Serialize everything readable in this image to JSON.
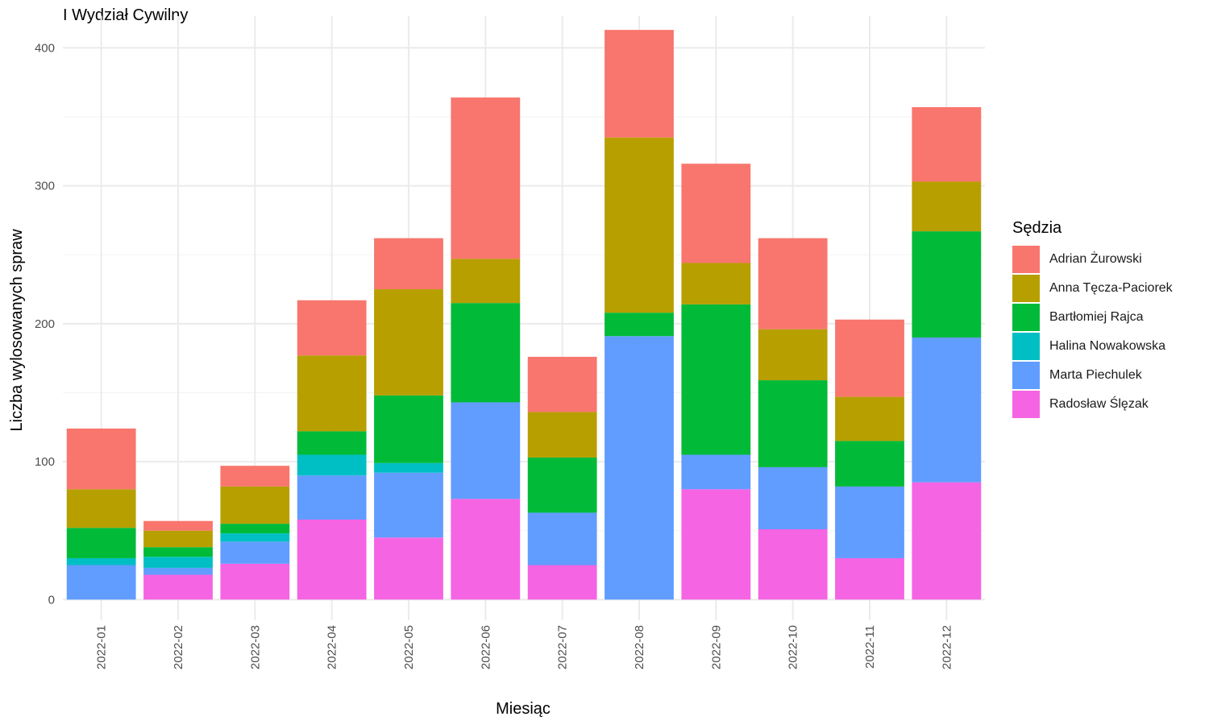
{
  "chart_data": {
    "type": "bar",
    "stacked": true,
    "title": "I Wydział Cywilny",
    "xlabel": "Miesiąc",
    "ylabel": "Liczba wylosowanych spraw",
    "ylim": [
      -15,
      423
    ],
    "yticks": [
      0,
      100,
      200,
      300,
      400
    ],
    "grid": true,
    "legend_title": "Sędzia",
    "legend_position": "right",
    "categories": [
      "2022-01",
      "2022-02",
      "2022-03",
      "2022-04",
      "2022-05",
      "2022-06",
      "2022-07",
      "2022-08",
      "2022-09",
      "2022-10",
      "2022-11",
      "2022-12"
    ],
    "series": [
      {
        "name": "Adrian Żurowski",
        "color": "#F8766D",
        "values": [
          44,
          7,
          15,
          40,
          37,
          117,
          40,
          78,
          72,
          66,
          56,
          54
        ]
      },
      {
        "name": "Anna Tęcza-Paciorek",
        "color": "#B79F00",
        "values": [
          28,
          12,
          27,
          55,
          77,
          32,
          33,
          127,
          30,
          37,
          32,
          36
        ]
      },
      {
        "name": "Bartłomiej Rajca",
        "color": "#00BA38",
        "values": [
          22,
          7,
          7,
          17,
          49,
          72,
          40,
          17,
          109,
          63,
          33,
          77
        ]
      },
      {
        "name": "Halina Nowakowska",
        "color": "#00BFC4",
        "values": [
          5,
          8,
          6,
          15,
          7,
          0,
          0,
          0,
          0,
          0,
          0,
          0
        ]
      },
      {
        "name": "Marta Piechulek",
        "color": "#619CFF",
        "values": [
          25,
          5,
          16,
          32,
          47,
          70,
          38,
          191,
          25,
          45,
          52,
          105
        ]
      },
      {
        "name": "Radosław Ślęzak",
        "color": "#F564E3",
        "values": [
          0,
          18,
          26,
          58,
          45,
          73,
          25,
          0,
          80,
          51,
          30,
          85
        ]
      }
    ]
  }
}
